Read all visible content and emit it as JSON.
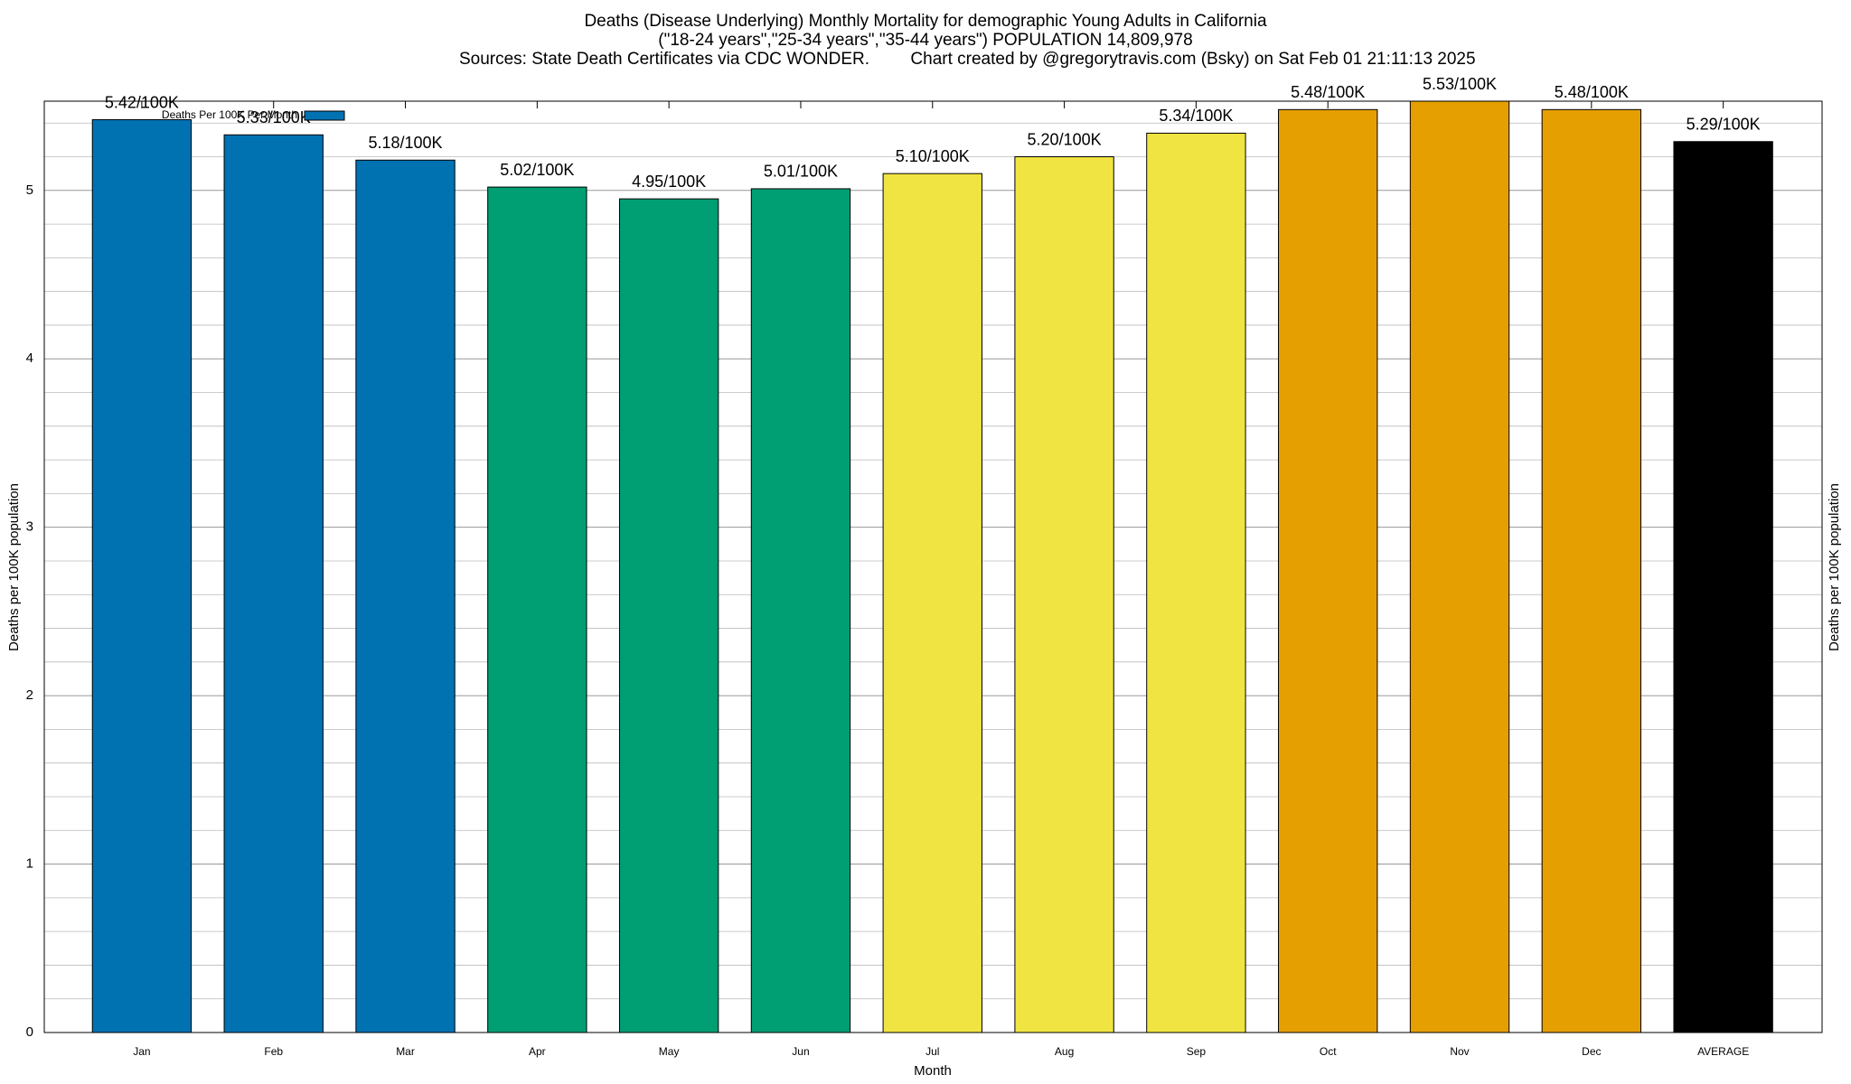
{
  "chart_data": {
    "type": "bar",
    "title": "Deaths (Disease Underlying) Monthly Mortality for demographic Young Adults in California",
    "subtitle": "(\"18-24 years\",\"25-34 years\",\"35-44 years\") POPULATION 14,809,978",
    "sources": "Sources: State Death Certificates via CDC WONDER.",
    "credit": "Chart created by @gregorytravis.com (Bsky) on Sat Feb 01 21:11:13 2025",
    "x_label": "Month",
    "y_label": "Deaths per 100K population",
    "y2_label": "Deaths per 100K population",
    "categories": [
      "Jan",
      "Feb",
      "Mar",
      "Apr",
      "May",
      "Jun",
      "Jul",
      "Aug",
      "Sep",
      "Oct",
      "Nov",
      "Dec",
      "AVERAGE"
    ],
    "series": [
      {
        "name": "Deaths Per 100K Per Month",
        "color": "#0072b2",
        "colors": [
          "#0072b2",
          "#0072b2",
          "#0072b2",
          "#009e73",
          "#009e73",
          "#009e73",
          "#f0e442",
          "#f0e442",
          "#f0e442",
          "#e69f00",
          "#e69f00",
          "#e69f00",
          "#000000"
        ],
        "values": [
          5.42,
          5.33,
          5.18,
          5.02,
          4.95,
          5.01,
          5.1,
          5.2,
          5.34,
          5.48,
          5.53,
          5.48,
          5.29
        ],
        "value_labels": [
          "5.42/100K",
          "5.33/100K",
          "5.18/100K",
          "5.02/100K",
          "4.95/100K",
          "5.01/100K",
          "5.10/100K",
          "5.20/100K",
          "5.34/100K",
          "5.48/100K",
          "5.53/100K",
          "5.48/100K",
          "5.29/100K"
        ]
      }
    ],
    "ylim": [
      0,
      5.53
    ],
    "yticks": [
      0,
      1,
      2,
      3,
      4,
      5
    ],
    "grid": true,
    "minor_grid_divisions": 5,
    "legend": "top-left"
  }
}
